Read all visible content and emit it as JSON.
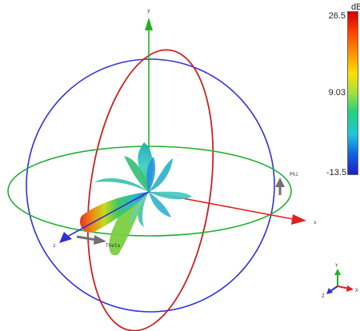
{
  "viewport": {
    "axis_labels": {
      "y": "y",
      "x": "x",
      "z": "z",
      "phi": "Phi",
      "theta": "Theta"
    }
  },
  "colorbar": {
    "unit": "dB",
    "max": "26.5",
    "mid": "9.03",
    "min": "-13.5"
  },
  "orientation_widget": {
    "y": "Y",
    "x": "X",
    "z": "Z"
  },
  "colors": {
    "x_axis": "#e02020",
    "y_axis": "#22b022",
    "z_axis": "#3030d0",
    "theta_ring": "#cc2020",
    "phi_ring": "#20b030",
    "sphere_ring": "#3030e0",
    "arrow_gray": "#707070"
  }
}
